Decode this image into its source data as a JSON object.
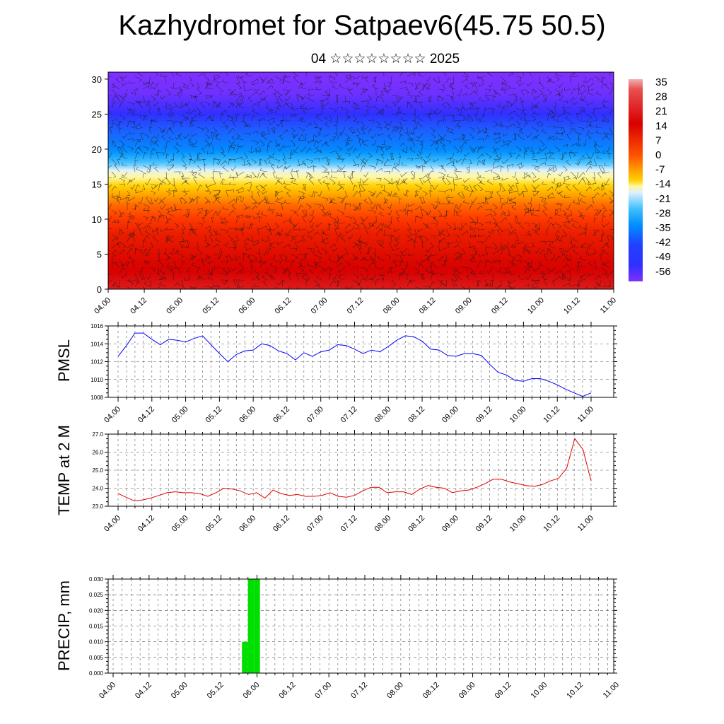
{
  "header": {
    "title": "Kazhydromet for Satpaev6(45.75 50.5)",
    "subtitle": "04 ☆☆☆☆☆☆☆☆ 2025"
  },
  "time_labels": [
    "04.00",
    "04.12",
    "05.00",
    "05.12",
    "06.00",
    "06.12",
    "07.00",
    "07.12",
    "08.00",
    "08.12",
    "09.00",
    "09.12",
    "10.00",
    "10.12",
    "11.00"
  ],
  "chart_data": [
    {
      "type": "heatmap",
      "title": "Kazhydromet for Satpaev6(45.75 50.5)",
      "subtitle": "04 ☆☆☆☆☆☆☆☆ 2025",
      "x_tick_labels": [
        "04.00",
        "04.12",
        "05.00",
        "05.12",
        "06.00",
        "06.12",
        "07.00",
        "07.12",
        "08.00",
        "08.12",
        "09.00",
        "09.12",
        "10.00",
        "10.12",
        "11.00"
      ],
      "y_tick_labels": [
        "0",
        "5",
        "10",
        "15",
        "20",
        "25",
        "30"
      ],
      "ylim": [
        0,
        31
      ],
      "colorbar_labels": [
        "35",
        "28",
        "21",
        "14",
        "7",
        "0",
        "-7",
        "-14",
        "-21",
        "-28",
        "-35",
        "-42",
        "-49",
        "-56"
      ],
      "colorbar_range": [
        -60,
        38
      ],
      "temperature_profile": [
        {
          "height": 0,
          "temp": 30
        },
        {
          "height": 4,
          "temp": 27
        },
        {
          "height": 8,
          "temp": 23
        },
        {
          "height": 12,
          "temp": 14
        },
        {
          "height": 15,
          "temp": 3
        },
        {
          "height": 16.5,
          "temp": -5
        },
        {
          "height": 17.5,
          "temp": -14
        },
        {
          "height": 20,
          "temp": -30
        },
        {
          "height": 23,
          "temp": -40
        },
        {
          "height": 25,
          "temp": -50
        },
        {
          "height": 28,
          "temp": -58
        },
        {
          "height": 31,
          "temp": -60
        }
      ],
      "overlay": "wind barbs"
    },
    {
      "type": "line",
      "ylabel": "PMSL",
      "x_tick_labels": [
        "04.00",
        "04.12",
        "05.00",
        "05.12",
        "06.00",
        "06.12",
        "07.00",
        "07.12",
        "08.00",
        "08.12",
        "09.00",
        "09.12",
        "10.00",
        "10.12",
        "11.00"
      ],
      "y_tick_labels": [
        "1008",
        "1010",
        "1012",
        "1014",
        "1016"
      ],
      "ylim": [
        1008,
        1016
      ],
      "grid": true,
      "color": "#0000ff",
      "series": [
        {
          "values": [
            1012.6,
            1013.8,
            1015.2,
            1015.2,
            1014.5,
            1013.9,
            1014.5,
            1014.4,
            1014.2,
            1014.6,
            1014.9,
            1013.9,
            1012.9,
            1012.0,
            1012.8,
            1013.2,
            1013.3,
            1014.0,
            1013.8,
            1013.2,
            1012.9,
            1012.2,
            1013.0,
            1012.6,
            1013.1,
            1013.3,
            1013.9,
            1013.8,
            1013.4,
            1012.9,
            1013.3,
            1013.1,
            1013.7,
            1014.4,
            1014.9,
            1014.8,
            1014.3,
            1013.4,
            1013.3,
            1012.7,
            1012.6,
            1012.9,
            1012.9,
            1012.7,
            1011.7,
            1010.8,
            1010.5,
            1009.9,
            1009.8,
            1010.1,
            1010.1,
            1009.8,
            1009.4,
            1008.9,
            1008.5,
            1008.1,
            1008.5
          ]
        }
      ]
    },
    {
      "type": "line",
      "ylabel": "TEMP at 2 M",
      "x_tick_labels": [
        "04.00",
        "04.12",
        "05.00",
        "05.12",
        "06.00",
        "06.12",
        "07.00",
        "07.12",
        "08.00",
        "08.12",
        "09.00",
        "09.12",
        "10.00",
        "10.12",
        "11.00"
      ],
      "y_tick_labels": [
        "23.0",
        "24.0",
        "25.0",
        "26.0",
        "27.0"
      ],
      "ylim": [
        23,
        27
      ],
      "grid": true,
      "color": "#e00000",
      "series": [
        {
          "values": [
            23.7,
            23.5,
            23.3,
            23.35,
            23.45,
            23.6,
            23.75,
            23.8,
            23.75,
            23.75,
            23.7,
            23.55,
            23.75,
            24.0,
            23.95,
            23.85,
            23.65,
            23.75,
            23.45,
            23.9,
            23.7,
            23.6,
            23.65,
            23.55,
            23.55,
            23.6,
            23.75,
            23.55,
            23.5,
            23.6,
            23.85,
            24.05,
            24.05,
            23.75,
            23.8,
            23.8,
            23.65,
            23.95,
            24.15,
            24.05,
            24.0,
            23.75,
            23.85,
            23.9,
            24.05,
            24.25,
            24.5,
            24.5,
            24.35,
            24.25,
            24.15,
            24.1,
            24.2,
            24.4,
            24.55,
            25.1,
            26.75,
            26.15,
            24.4
          ]
        }
      ]
    },
    {
      "type": "bar",
      "ylabel": "PRECIP, mm",
      "x_tick_labels": [
        "04.00",
        "04.12",
        "05.00",
        "05.12",
        "06.00",
        "06.12",
        "07.00",
        "07.12",
        "08.00",
        "08.12",
        "09.00",
        "09.12",
        "10.00",
        "10.12",
        "11.00"
      ],
      "y_tick_labels": [
        "0.000",
        "0.005",
        "0.010",
        "0.015",
        "0.020",
        "0.025",
        "0.030"
      ],
      "ylim": [
        0,
        0.03
      ],
      "grid": true,
      "color": "#00e000",
      "series": [
        {
          "bars": [
            {
              "time_h": 44,
              "value": 0.01
            },
            {
              "time_h": 46,
              "value": 0.03
            },
            {
              "time_h": 48,
              "value": 0.03
            }
          ]
        }
      ]
    }
  ]
}
